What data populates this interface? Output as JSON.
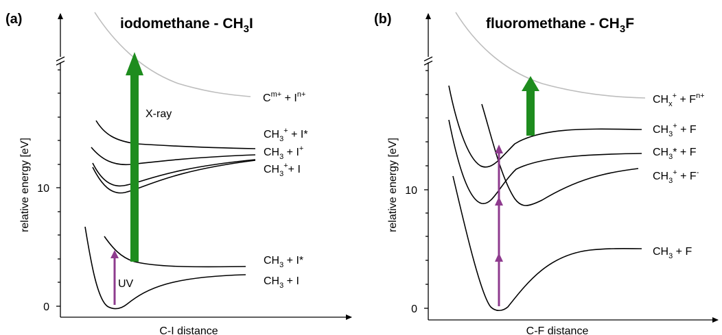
{
  "panel_a": {
    "label": "(a)",
    "title_pre": "iodomethane - CH",
    "title_sub": "3",
    "title_post": "I",
    "axis_y": "relative energy [eV]",
    "axis_x": "C-I distance",
    "tick_0": "0",
    "tick_10": "10",
    "xray": "X-ray",
    "uv": "UV",
    "lbl_cm": {
      "a": "C",
      "b": "m+",
      "c": " + I",
      "d": "n+"
    },
    "lbl_ch3p_istar": {
      "a": "CH",
      "b": "3",
      "c": "+",
      "d": " + I*"
    },
    "lbl_ch3_ip": {
      "a": "CH",
      "b": "3",
      "c": " + I",
      "d": "+"
    },
    "lbl_ch3p_i": {
      "a": "CH",
      "b": "3",
      "c": "+",
      "d": "+ I"
    },
    "lbl_ch3_istar": {
      "a": "CH",
      "b": "3",
      "c": " + I*"
    },
    "lbl_ch3_i": {
      "a": "CH",
      "b": "3",
      "c": " + I"
    }
  },
  "panel_b": {
    "label": "(b)",
    "title_pre": "fluoromethane - CH",
    "title_sub": "3",
    "title_post": "F",
    "axis_y": "relative energy [eV]",
    "axis_x": "C-F distance",
    "tick_0": "0",
    "tick_10": "10",
    "lbl_chx": {
      "a": "CH",
      "b": "x",
      "c": "+",
      "d": " + F",
      "e": "n+"
    },
    "lbl_ch3p_f": {
      "a": "CH",
      "b": "3",
      "c": "+",
      "d": " + F"
    },
    "lbl_ch3star_f": {
      "a": "CH",
      "b": "3",
      "c": "* + F"
    },
    "lbl_ch3p_fm": {
      "a": "CH",
      "b": "3",
      "c": "+",
      "d": " + F",
      "e": "-"
    },
    "lbl_ch3_f": {
      "a": "CH",
      "b": "3",
      "c": " + F"
    }
  },
  "colors": {
    "xray": "#1e8c1e",
    "uv": "#8e3b8e",
    "gray": "#bdbdbd"
  }
}
